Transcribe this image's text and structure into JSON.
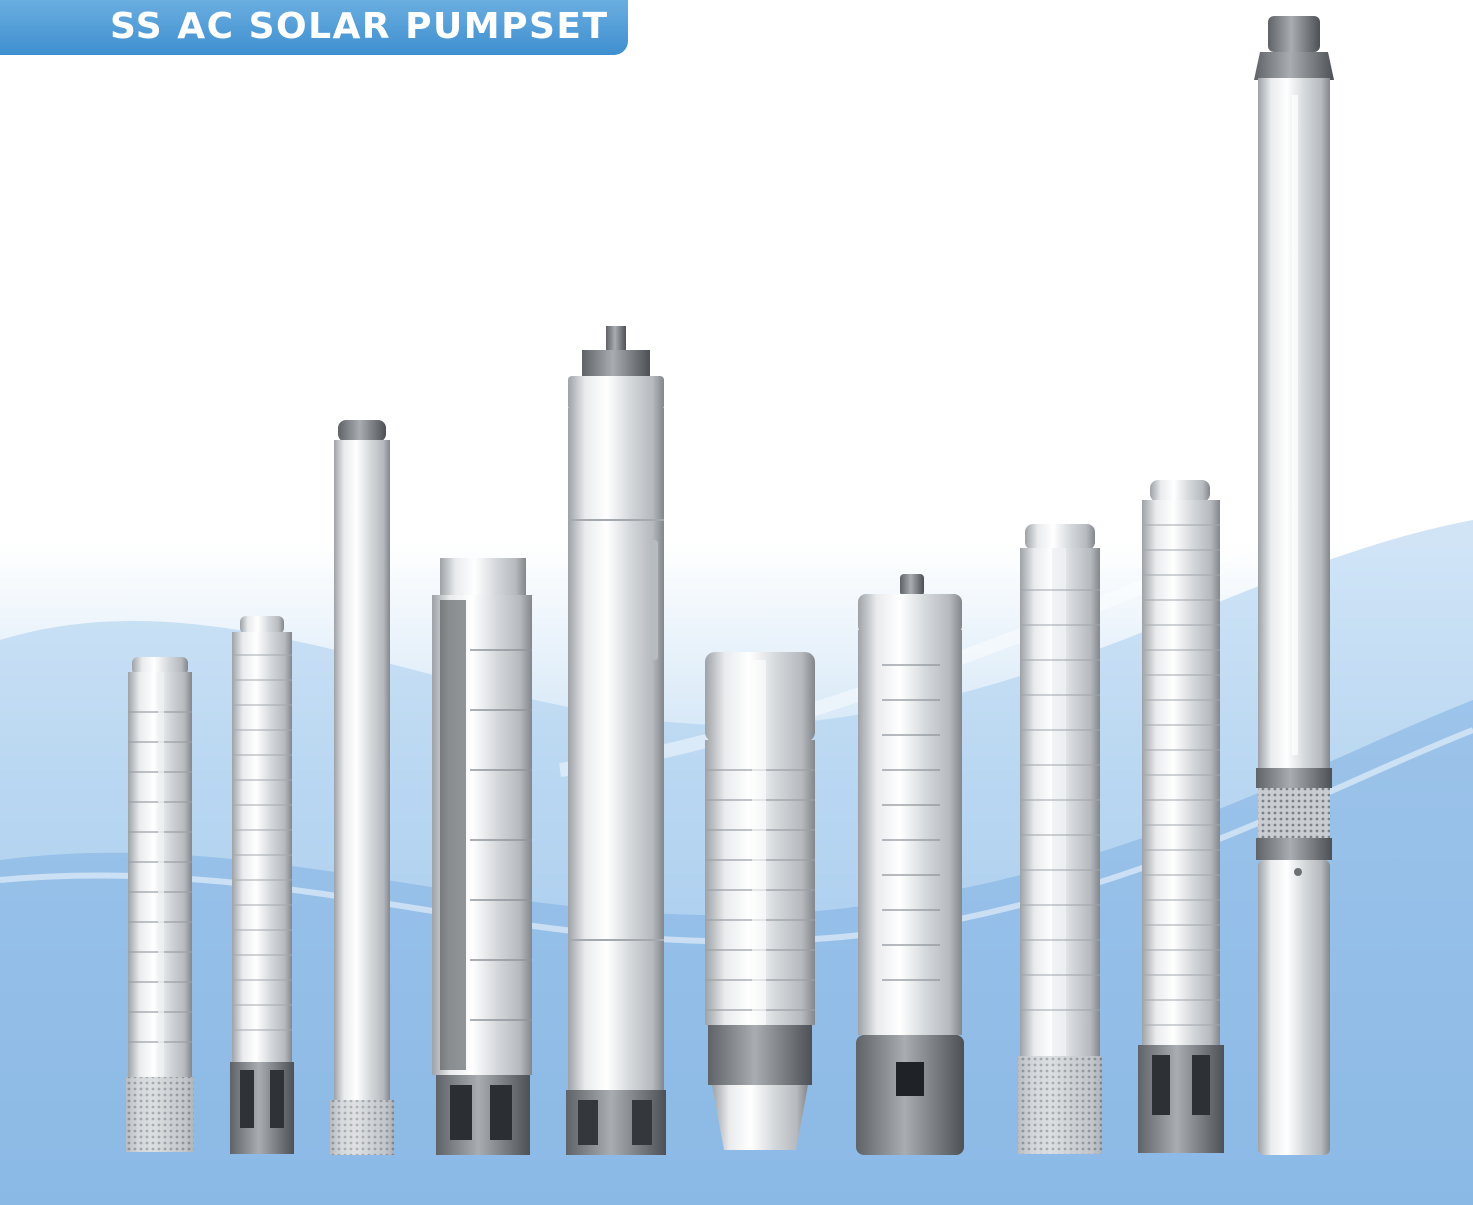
{
  "banner": {
    "title": "SS AC SOLAR PUMPSET",
    "color": "#4f9fdc"
  },
  "background": {
    "top_color": "#ffffff",
    "wave_color": "#7fb4e3",
    "bottom_color": "#8dbbe6"
  },
  "product_icons": [
    "submersible-pump-icon",
    "submersible-pump-icon",
    "submersible-motor-icon",
    "submersible-pump-icon",
    "submersible-motor-icon",
    "submersible-pump-icon",
    "submersible-pump-icon",
    "submersible-pump-icon",
    "submersible-pump-icon",
    "submersible-pumpset-icon"
  ]
}
